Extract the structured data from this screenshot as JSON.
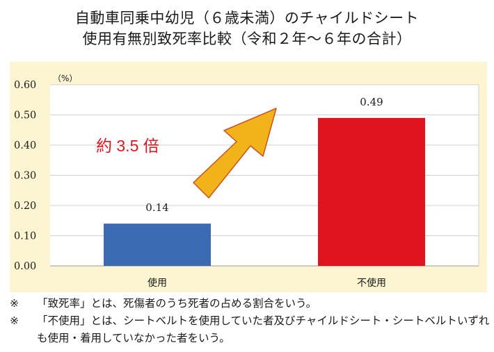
{
  "chart_data": {
    "type": "bar",
    "title": [
      "自動車同乗中幼児（６歳未満）のチャイルドシート",
      "使用有無別致死率比較（令和２年～６年の合計）"
    ],
    "unit_label": "（%）",
    "categories": [
      "使用",
      "不使用"
    ],
    "values": [
      0.14,
      0.49
    ],
    "value_labels": [
      "0.14",
      "0.49"
    ],
    "bar_colors": [
      "#3b6bb3",
      "#e0141e"
    ],
    "ylim": [
      0,
      0.6
    ],
    "yticks": [
      "0.00",
      "0.10",
      "0.20",
      "0.30",
      "0.40",
      "0.50",
      "0.60"
    ],
    "grid": true,
    "annotation": {
      "text": "約 3.5 倍",
      "color": "#e0141e"
    },
    "arrow": {
      "fill": "#f2b21a",
      "stroke": "#c9521c"
    }
  },
  "notes": [
    {
      "mark": "※",
      "text": "「致死率」とは、死傷者のうち死者の占める割合をいう。"
    },
    {
      "mark": "※",
      "text": "「不使用」とは、シートベルトを使用していた者及びチャイルドシート・シートベルトいずれも使用・着用していなかった者をいう。"
    }
  ]
}
